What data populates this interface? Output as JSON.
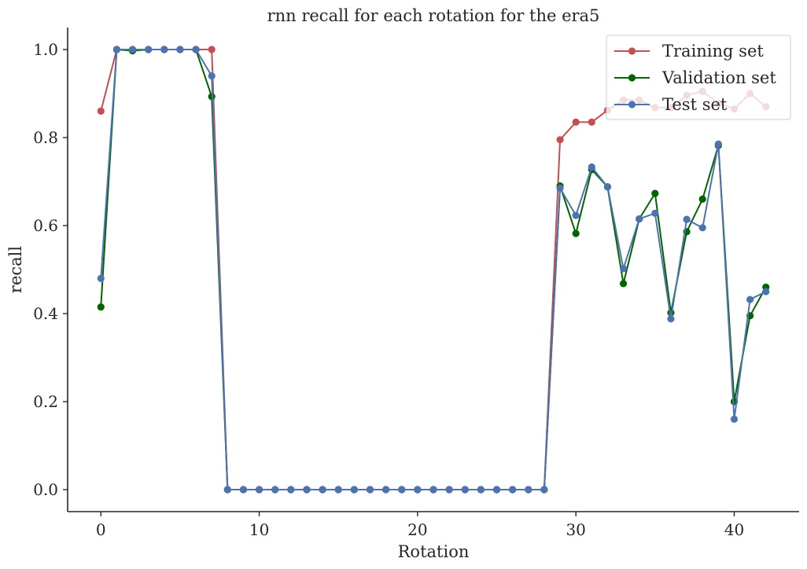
{
  "chart_data": {
    "type": "line",
    "title": "rnn recall for each rotation for the era5",
    "xlabel": "Rotation",
    "ylabel": "recall",
    "xlim": [
      -2.1,
      44.1
    ],
    "ylim": [
      -0.05,
      1.05
    ],
    "xticks": [
      0,
      10,
      20,
      30,
      40
    ],
    "xtick_labels": [
      "0",
      "10",
      "20",
      "30",
      "40"
    ],
    "yticks": [
      0.0,
      0.2,
      0.4,
      0.6,
      0.8,
      1.0
    ],
    "ytick_labels": [
      "0.0",
      "0.2",
      "0.4",
      "0.6",
      "0.8",
      "1.0"
    ],
    "grid": false,
    "legend_position": "top-right",
    "x": [
      0,
      1,
      2,
      3,
      4,
      5,
      6,
      7,
      8,
      9,
      10,
      11,
      12,
      13,
      14,
      15,
      16,
      17,
      18,
      19,
      20,
      21,
      22,
      23,
      24,
      25,
      26,
      27,
      28,
      29,
      30,
      31,
      32,
      33,
      34,
      35,
      36,
      37,
      38,
      39,
      40,
      41,
      42
    ],
    "series": [
      {
        "name": "Training set",
        "color": "#c44e52",
        "values": [
          0.86,
          1.0,
          1.0,
          1.0,
          1.0,
          1.0,
          1.0,
          1.0,
          0,
          0,
          0,
          0,
          0,
          0,
          0,
          0,
          0,
          0,
          0,
          0,
          0,
          0,
          0,
          0,
          0,
          0,
          0,
          0,
          0,
          0.795,
          0.835,
          0.835,
          0.862,
          0.885,
          0.885,
          0.868,
          0.868,
          0.896,
          0.905,
          0.878,
          0.865,
          0.9,
          0.87
        ]
      },
      {
        "name": "Validation set",
        "color": "#006400",
        "values": [
          0.415,
          1.0,
          0.997,
          1.0,
          1.0,
          1.0,
          1.0,
          0.893,
          0,
          0,
          0,
          0,
          0,
          0,
          0,
          0,
          0,
          0,
          0,
          0,
          0,
          0,
          0,
          0,
          0,
          0,
          0,
          0,
          0,
          0.69,
          0.582,
          0.727,
          0.688,
          0.468,
          0.615,
          0.673,
          0.402,
          0.586,
          0.66,
          0.782,
          0.2,
          0.395,
          0.46
        ]
      },
      {
        "name": "Test set",
        "color": "#4c72b0",
        "values": [
          0.48,
          1.0,
          1.0,
          1.0,
          1.0,
          1.0,
          1.0,
          0.94,
          0,
          0,
          0,
          0,
          0,
          0,
          0,
          0,
          0,
          0,
          0,
          0,
          0,
          0,
          0,
          0,
          0,
          0,
          0,
          0,
          0,
          0.685,
          0.623,
          0.733,
          0.688,
          0.502,
          0.615,
          0.628,
          0.388,
          0.614,
          0.595,
          0.785,
          0.16,
          0.432,
          0.45
        ]
      }
    ]
  }
}
